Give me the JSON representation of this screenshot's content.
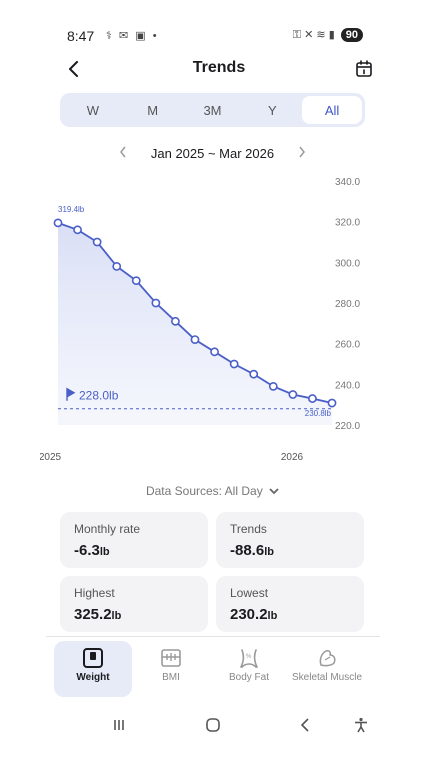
{
  "status_bar": {
    "time": "8:47",
    "notifications": "⚕ ✉ ▣ •",
    "right_icons": "⚿ ✕ ≋ ▮",
    "battery": "90"
  },
  "header": {
    "title": "Trends"
  },
  "range_tabs": {
    "items": [
      "W",
      "M",
      "3M",
      "Y",
      "All"
    ],
    "active": "All"
  },
  "date_range": {
    "label": "Jan 2025 ~ Mar 2026"
  },
  "chart_data": {
    "type": "line",
    "x": [
      "2025-01",
      "2025-02",
      "2025-03",
      "2025-04",
      "2025-05",
      "2025-06",
      "2025-07",
      "2025-08",
      "2025-09",
      "2025-10",
      "2025-11",
      "2025-12",
      "2026-01",
      "2026-02",
      "2026-03"
    ],
    "series": [
      {
        "values": [
          319.4,
          316,
          310,
          298,
          291,
          280,
          271,
          262,
          256,
          250,
          245,
          239,
          235,
          233,
          230.8
        ]
      }
    ],
    "ylim": [
      220,
      340
    ],
    "yticks": [
      "340.0",
      "320.0",
      "300.0",
      "280.0",
      "260.0",
      "240.0",
      "220.0"
    ],
    "xticks": [
      "2025",
      "2026"
    ],
    "start_label": "319.4lb",
    "end_label": "230.8lb",
    "target_value": 228.0,
    "target_label": "228.0lb",
    "colors": {
      "line": "#4a5fc7",
      "fill": "#dfe4f6",
      "target": "#4a5fc7"
    }
  },
  "data_sources": {
    "label": "Data Sources: All Day"
  },
  "stats": {
    "monthly_rate": {
      "label": "Monthly rate",
      "value": "-6.3",
      "unit": "lb"
    },
    "trends": {
      "label": "Trends",
      "value": "-88.6",
      "unit": "lb"
    },
    "highest": {
      "label": "Highest",
      "value": "325.2",
      "unit": "lb"
    },
    "lowest": {
      "label": "Lowest",
      "value": "230.2",
      "unit": "lb"
    }
  },
  "bottom_nav": {
    "weight": "Weight",
    "bmi": "BMI",
    "body_fat": "Body Fat",
    "skeletal_muscle": "Skeletal Muscle"
  }
}
